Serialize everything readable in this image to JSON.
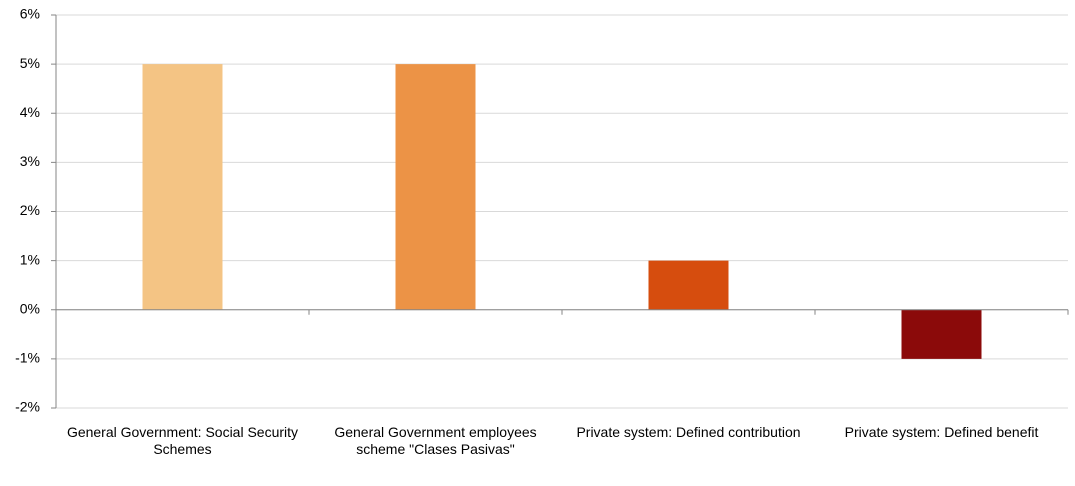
{
  "chart_data": {
    "type": "bar",
    "categories": [
      "General Government: Social Security Schemes",
      "General Government employees scheme \"Clases Pasivas\"",
      "Private system: Defined contribution",
      "Private system: Defined benefit"
    ],
    "values": [
      5,
      5,
      1,
      -1
    ],
    "colors": [
      "#f4c484",
      "#ec9346",
      "#d64d0e",
      "#8b0a0a"
    ],
    "ylim": [
      -2,
      6
    ],
    "yticks": [
      {
        "value": -2,
        "label": "-2%"
      },
      {
        "value": -1,
        "label": "-1%"
      },
      {
        "value": 0,
        "label": "0%"
      },
      {
        "value": 1,
        "label": "1%"
      },
      {
        "value": 2,
        "label": "2%"
      },
      {
        "value": 3,
        "label": "3%"
      },
      {
        "value": 4,
        "label": "4%"
      },
      {
        "value": 5,
        "label": "5%"
      },
      {
        "value": 6,
        "label": "6%"
      }
    ],
    "grid": true
  }
}
